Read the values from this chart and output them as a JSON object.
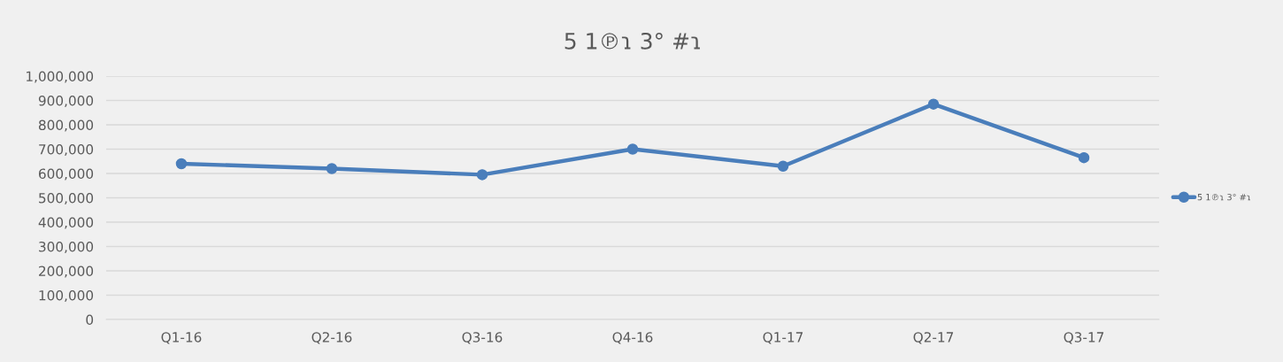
{
  "chart_data": {
    "type": "line",
    "title": "5 1℗ɿ 3° #ɿ",
    "categories": [
      "Q1-16",
      "Q2-16",
      "Q3-16",
      "Q4-16",
      "Q1-17",
      "Q2-17",
      "Q3-17"
    ],
    "series": [
      {
        "name": "5 1℗ɿ 3° #ɿ",
        "color": "#4a7ebb",
        "values": [
          640000,
          620000,
          595000,
          700000,
          630000,
          885000,
          665000
        ]
      }
    ],
    "ylim": [
      0,
      1000000
    ],
    "yticks": [
      {
        "value": 0,
        "label": "0"
      },
      {
        "value": 100000,
        "label": "100,000"
      },
      {
        "value": 200000,
        "label": "200,000"
      },
      {
        "value": 300000,
        "label": "300,000"
      },
      {
        "value": 400000,
        "label": "400,000"
      },
      {
        "value": 500000,
        "label": "500,000"
      },
      {
        "value": 600000,
        "label": "600,000"
      },
      {
        "value": 700000,
        "label": "700,000"
      },
      {
        "value": 800000,
        "label": "800,000"
      },
      {
        "value": 900000,
        "label": "900,000"
      },
      {
        "value": 1000000,
        "label": "1,000,000"
      }
    ],
    "grid": "y",
    "legend": "right",
    "marker": "circle",
    "line_style": "solid"
  }
}
